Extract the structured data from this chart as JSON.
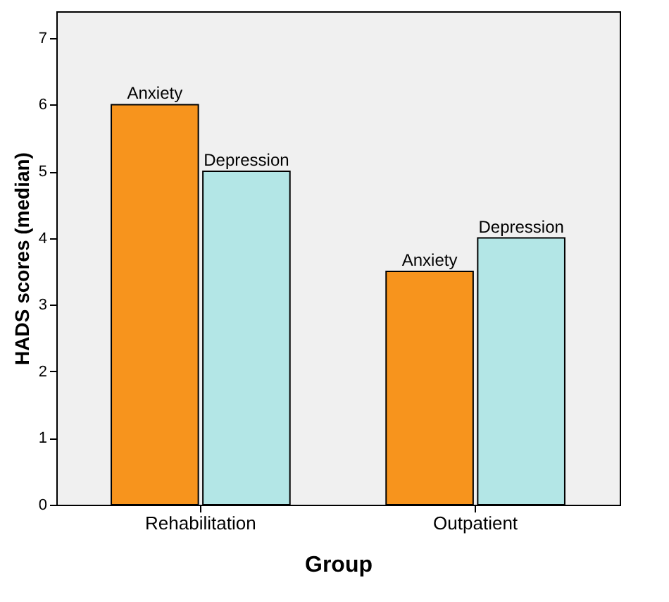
{
  "chart_data": {
    "type": "bar",
    "xlabel": "Group",
    "ylabel": "HADS scores (median)",
    "categories": [
      "Rehabilitation",
      "Outpatient"
    ],
    "series": [
      {
        "name": "Anxiety",
        "color": "#f7941d",
        "values": [
          6,
          3.5
        ]
      },
      {
        "name": "Depression",
        "color": "#b3e6e6",
        "values": [
          5,
          4
        ]
      }
    ],
    "ylim": [
      0,
      7.4
    ],
    "yticks": [
      0,
      1,
      2,
      3,
      4,
      5,
      6,
      7
    ],
    "grid": false,
    "legend": false
  }
}
